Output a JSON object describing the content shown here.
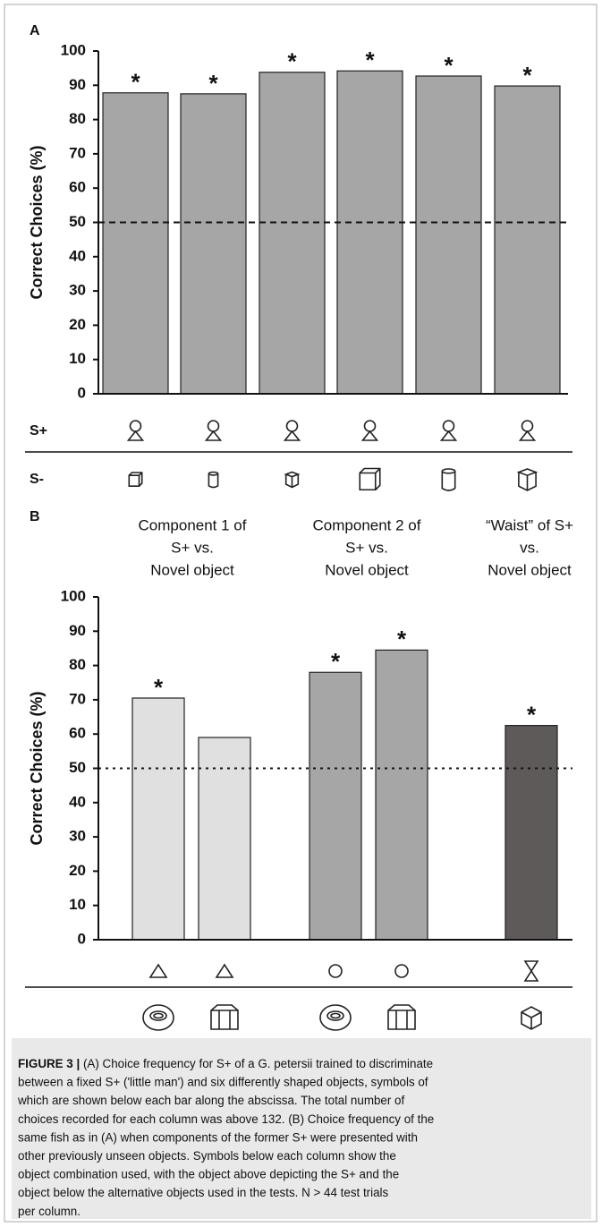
{
  "chart_data": [
    {
      "type": "bar",
      "panel": "A",
      "ylabel": "Correct Choices (%)",
      "values": [
        87.8,
        87.5,
        93.8,
        94.2,
        92.7,
        89.8
      ],
      "color": "#a6a6a6",
      "markers": [
        "*",
        "*",
        "*",
        "*",
        "*",
        "*"
      ],
      "ylim": [
        0,
        100
      ],
      "yticks": [
        0,
        10,
        20,
        30,
        40,
        50,
        60,
        70,
        80,
        90,
        100
      ],
      "reference_line": 50,
      "reference_style": "dashed",
      "row_labels": [
        "S+",
        "S-"
      ]
    },
    {
      "type": "bar",
      "panel": "B",
      "ylabel": "Correct Choices (%)",
      "groups": [
        {
          "lines": [
            "Component 1 of",
            "S+ vs.",
            "Novel object"
          ]
        },
        {
          "lines": [
            "Component 2 of",
            "S+ vs.",
            "Novel object"
          ]
        },
        {
          "lines": [
            "“Waist” of S+",
            "vs.",
            "Novel object"
          ]
        }
      ],
      "values": [
        70.5,
        59,
        78,
        84.5,
        62.5
      ],
      "colors": [
        "#e0e0e0",
        "#e0e0e0",
        "#a6a6a6",
        "#a6a6a6",
        "#5e5a5a"
      ],
      "markers": [
        "*",
        null,
        "*",
        "*",
        "*"
      ],
      "ylim": [
        0,
        100
      ],
      "yticks": [
        0,
        10,
        20,
        30,
        40,
        50,
        60,
        70,
        80,
        90,
        100
      ],
      "reference_line": 50,
      "reference_style": "dotted"
    }
  ],
  "caption": {
    "label": "FIGURE 3 |",
    "lines": [
      "(A) Choice frequency for S+ of a G. petersii trained to discriminate",
      "between a fixed S+ ('little man') and six differently shaped objects, symbols of",
      "which are shown below each bar along the abscissa. The total number of",
      "choices recorded for each column was above 132. (B) Choice frequency of the",
      "same fish as in (A) when components of the former S+ were presented with",
      "other previously unseen objects. Symbols below each column show the",
      "object combination used, with the object above depicting the S+ and the",
      "object below the alternative objects used in the tests. N > 44 test trials",
      "per column."
    ]
  }
}
